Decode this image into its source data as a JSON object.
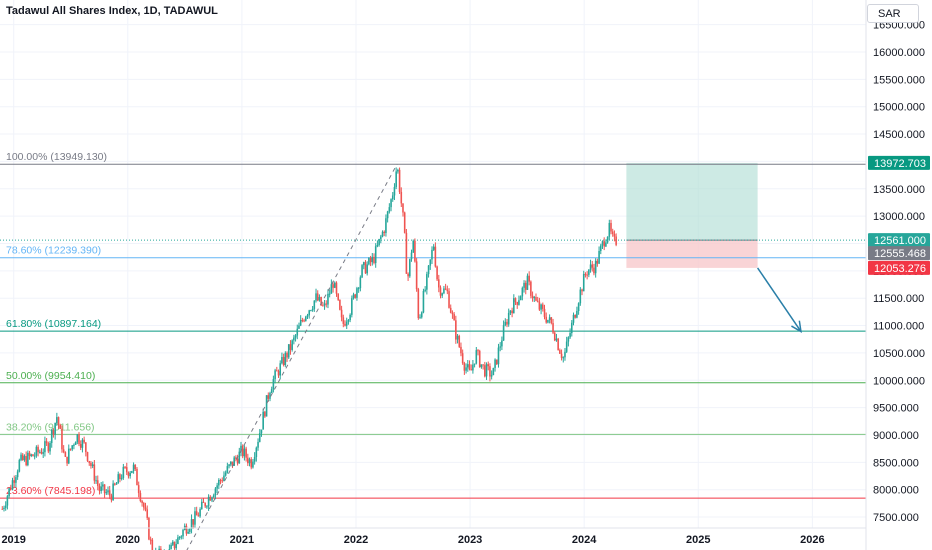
{
  "chart_title": "Tadawul All Shares Index, 1D, TADAWUL",
  "currency": "SAR",
  "colors": {
    "up": "#26a69a",
    "down": "#ef5350",
    "grid": "#f0f3fa",
    "axis_text": "#131722",
    "target_zone": "#b2dfd5",
    "stop_zone": "#f8c9cc",
    "arrow": "#2a7fa8"
  },
  "chart_data": {
    "type": "candlestick",
    "title": "Tadawul All Shares Index, 1D, TADAWUL",
    "ylim": [
      7300,
      16950
    ],
    "xlim": [
      2018.88,
      2026.47
    ],
    "grid": true,
    "y_ticks": [
      "16500.000",
      "16000.000",
      "15500.000",
      "15000.000",
      "14500.000",
      "14000.000",
      "13500.000",
      "13000.000",
      "12500.000",
      "12000.000",
      "11500.000",
      "11000.000",
      "10500.000",
      "10000.000",
      "9500.000",
      "9000.000",
      "8500.000",
      "8000.000",
      "7500.000"
    ],
    "x_ticks": [
      "2019",
      "2020",
      "2021",
      "2022",
      "2023",
      "2024",
      "2025",
      "2026"
    ],
    "price_path": [
      [
        2018.9,
        7650
      ],
      [
        2019.05,
        8500
      ],
      [
        2019.15,
        8600
      ],
      [
        2019.3,
        8800
      ],
      [
        2019.38,
        9350
      ],
      [
        2019.45,
        8500
      ],
      [
        2019.55,
        9000
      ],
      [
        2019.62,
        8800
      ],
      [
        2019.75,
        8000
      ],
      [
        2019.85,
        7900
      ],
      [
        2019.95,
        8300
      ],
      [
        2020.05,
        8400
      ],
      [
        2020.15,
        7600
      ],
      [
        2020.22,
        6800
      ],
      [
        2020.35,
        6800
      ],
      [
        2020.5,
        7300
      ],
      [
        2020.6,
        7500
      ],
      [
        2020.72,
        7900
      ],
      [
        2020.82,
        8200
      ],
      [
        2020.92,
        8500
      ],
      [
        2021.0,
        8700
      ],
      [
        2021.08,
        8500
      ],
      [
        2021.15,
        9000
      ],
      [
        2021.25,
        9900
      ],
      [
        2021.35,
        10300
      ],
      [
        2021.45,
        10700
      ],
      [
        2021.55,
        11200
      ],
      [
        2021.65,
        11500
      ],
      [
        2021.72,
        11300
      ],
      [
        2021.8,
        11800
      ],
      [
        2021.88,
        11000
      ],
      [
        2021.95,
        11300
      ],
      [
        2022.05,
        12000
      ],
      [
        2022.15,
        12200
      ],
      [
        2022.25,
        12800
      ],
      [
        2022.32,
        13400
      ],
      [
        2022.36,
        13949
      ],
      [
        2022.42,
        12800
      ],
      [
        2022.45,
        11800
      ],
      [
        2022.5,
        12600
      ],
      [
        2022.55,
        11100
      ],
      [
        2022.62,
        11800
      ],
      [
        2022.68,
        12500
      ],
      [
        2022.72,
        11700
      ],
      [
        2022.8,
        11600
      ],
      [
        2022.88,
        10800
      ],
      [
        2022.95,
        10300
      ],
      [
        2023.0,
        10100
      ],
      [
        2023.05,
        10500
      ],
      [
        2023.12,
        10200
      ],
      [
        2023.2,
        10100
      ],
      [
        2023.28,
        10800
      ],
      [
        2023.35,
        11300
      ],
      [
        2023.42,
        11500
      ],
      [
        2023.5,
        11800
      ],
      [
        2023.58,
        11400
      ],
      [
        2023.65,
        11200
      ],
      [
        2023.72,
        11000
      ],
      [
        2023.78,
        10600
      ],
      [
        2023.82,
        10400
      ],
      [
        2023.88,
        10900
      ],
      [
        2023.95,
        11500
      ],
      [
        2024.02,
        12000
      ],
      [
        2024.1,
        12100
      ],
      [
        2024.18,
        12600
      ],
      [
        2024.22,
        12750
      ],
      [
        2024.26,
        12500
      ],
      [
        2024.28,
        12555
      ]
    ],
    "fibonacci": [
      {
        "label": "100.00% (13949.130)",
        "value": 13949.13,
        "color": "#787b86"
      },
      {
        "label": "78.60% (12239.390)",
        "value": 12239.39,
        "color": "#64b5f6"
      },
      {
        "label": "61.80% (10897.164)",
        "value": 10897.164,
        "color": "#089981"
      },
      {
        "label": "50.00% (9954.410)",
        "value": 9954.41,
        "color": "#4caf50"
      },
      {
        "label": "38.20% (9011.656)",
        "value": 9011.656,
        "color": "#81c784"
      },
      {
        "label": "23.60% (7845.198)",
        "value": 7845.198,
        "color": "#f23645"
      }
    ],
    "position": {
      "target": 13972.703,
      "entry": 12561.0,
      "stop": 12053.276,
      "start": 2024.37,
      "end": 2025.52
    },
    "arrow_to": [
      2025.9,
      10890
    ],
    "price_labels": [
      {
        "text": "13972.703",
        "value": 13972.703,
        "bg": "#089981",
        "fg": "#ffffff"
      },
      {
        "text": "12561.000",
        "value": 12561.0,
        "bg": "#26a69a",
        "fg": "#ffffff"
      },
      {
        "text": "12555.468",
        "value": 12555.468,
        "bg": "#787b86",
        "fg": "#ffffff"
      },
      {
        "text": "12053.276",
        "value": 12053.276,
        "bg": "#f23645",
        "fg": "#ffffff"
      }
    ]
  }
}
